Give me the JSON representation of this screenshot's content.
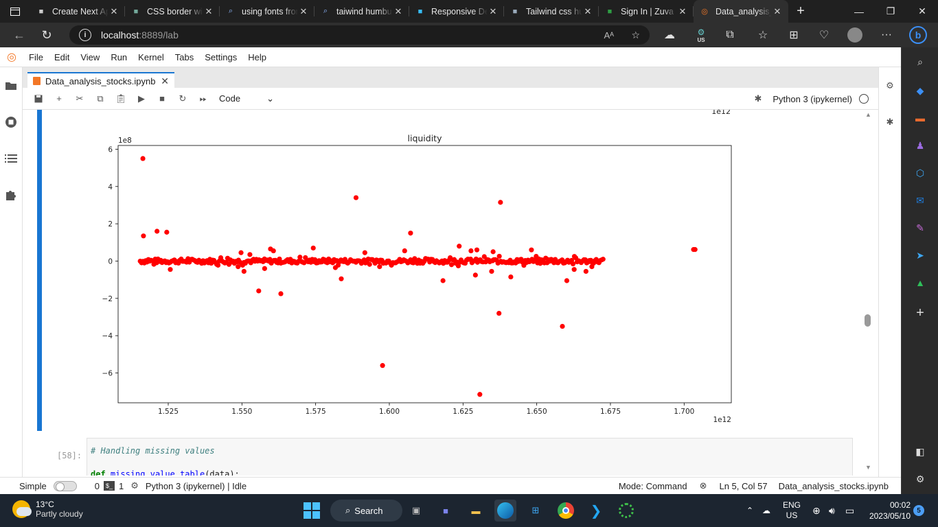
{
  "browser": {
    "tabs": [
      {
        "label": "Create Next App",
        "icon": "document-icon"
      },
      {
        "label": "CSS border width",
        "icon": "chatgpt-icon"
      },
      {
        "label": "using fonts from",
        "icon": "search-icon"
      },
      {
        "label": "taiwind humburger",
        "icon": "search-icon"
      },
      {
        "label": "Responsive Design",
        "icon": "tailwind-icon"
      },
      {
        "label": "Tailwind css humb",
        "icon": "ai-icon"
      },
      {
        "label": "Sign In | Zuva",
        "icon": "zuva-icon"
      },
      {
        "label": "Data_analysis_st",
        "icon": "jupyter-icon",
        "active": true
      }
    ],
    "url_host": "localhost",
    "url_path": ":8889/lab",
    "profile_badge": "US"
  },
  "jupyter": {
    "menu": [
      "File",
      "Edit",
      "View",
      "Run",
      "Kernel",
      "Tabs",
      "Settings",
      "Help"
    ],
    "doc_tab": "Data_analysis_stocks.ipynb",
    "cell_type": "Code",
    "kernel": "Python 3 (ipykernel)",
    "next_cell": {
      "prompt": "[58]:",
      "line1": "# Handling missing values",
      "kw": "def",
      "fn": "missing_value_table",
      "rest": "(data):"
    },
    "status": {
      "mode_label": "Simple",
      "count0": "0",
      "count1": "1",
      "kernel_status": "Python 3 (ipykernel) | Idle",
      "mode": "Mode: Command",
      "position": "Ln 5, Col 57",
      "file": "Data_analysis_stocks.ipynb"
    }
  },
  "chart_data": {
    "type": "scatter",
    "title": "liquidity",
    "x_offset_label": "1e12",
    "y_offset_label": "1e8",
    "top_offset_label": "1e12",
    "xlim": [
      1.508,
      1.716
    ],
    "ylim": [
      -7.6,
      6.2
    ],
    "xticks": [
      1.525,
      1.55,
      1.575,
      1.6,
      1.625,
      1.65,
      1.675,
      1.7
    ],
    "xtick_labels": [
      "1.525",
      "1.550",
      "1.575",
      "1.600",
      "1.625",
      "1.650",
      "1.675",
      "1.700"
    ],
    "yticks": [
      6,
      4,
      2,
      0,
      -2,
      -4,
      -6
    ],
    "ytick_labels": [
      "6",
      "4",
      "2",
      "0",
      "−2",
      "−4",
      "−6"
    ],
    "color": "#ff0000",
    "dense_band": {
      "x_range": [
        1.5155,
        1.6725
      ],
      "y_center": 0.0,
      "y_jitter": 0.12
    },
    "points": [
      [
        1.5164,
        5.5
      ],
      [
        1.5166,
        1.35
      ],
      [
        1.5212,
        1.6
      ],
      [
        1.5245,
        1.55
      ],
      [
        1.5257,
        -0.45
      ],
      [
        1.5487,
        -0.3
      ],
      [
        1.5497,
        0.45
      ],
      [
        1.5507,
        -0.55
      ],
      [
        1.5527,
        0.35
      ],
      [
        1.5557,
        -1.6
      ],
      [
        1.5577,
        -0.4
      ],
      [
        1.5597,
        0.65
      ],
      [
        1.5607,
        0.55
      ],
      [
        1.5632,
        -1.75
      ],
      [
        1.5742,
        0.7
      ],
      [
        1.5817,
        -0.35
      ],
      [
        1.5837,
        -0.95
      ],
      [
        1.5887,
        3.4
      ],
      [
        1.5917,
        0.45
      ],
      [
        1.5967,
        -0.3
      ],
      [
        1.5977,
        -5.6
      ],
      [
        1.6052,
        0.55
      ],
      [
        1.6072,
        1.5
      ],
      [
        1.6182,
        -1.05
      ],
      [
        1.6237,
        0.8
      ],
      [
        1.6277,
        0.55
      ],
      [
        1.6292,
        -0.75
      ],
      [
        1.6307,
        -7.15
      ],
      [
        1.6297,
        0.6
      ],
      [
        1.6347,
        -0.55
      ],
      [
        1.6352,
        0.5
      ],
      [
        1.6372,
        -2.8
      ],
      [
        1.6377,
        3.15
      ],
      [
        1.6412,
        -0.85
      ],
      [
        1.6482,
        0.6
      ],
      [
        1.6587,
        -3.5
      ],
      [
        1.6602,
        -1.05
      ],
      [
        1.6627,
        -0.45
      ],
      [
        1.6667,
        -0.55
      ],
      [
        1.6687,
        -0.3
      ],
      [
        1.7032,
        0.62
      ],
      [
        1.7037,
        0.62
      ]
    ]
  },
  "taskbar": {
    "temp": "13°C",
    "weather": "Partly cloudy",
    "search": "Search",
    "lang1": "ENG",
    "lang2": "US",
    "time": "00:02",
    "date": "2023/05/10",
    "notifications": "5"
  }
}
